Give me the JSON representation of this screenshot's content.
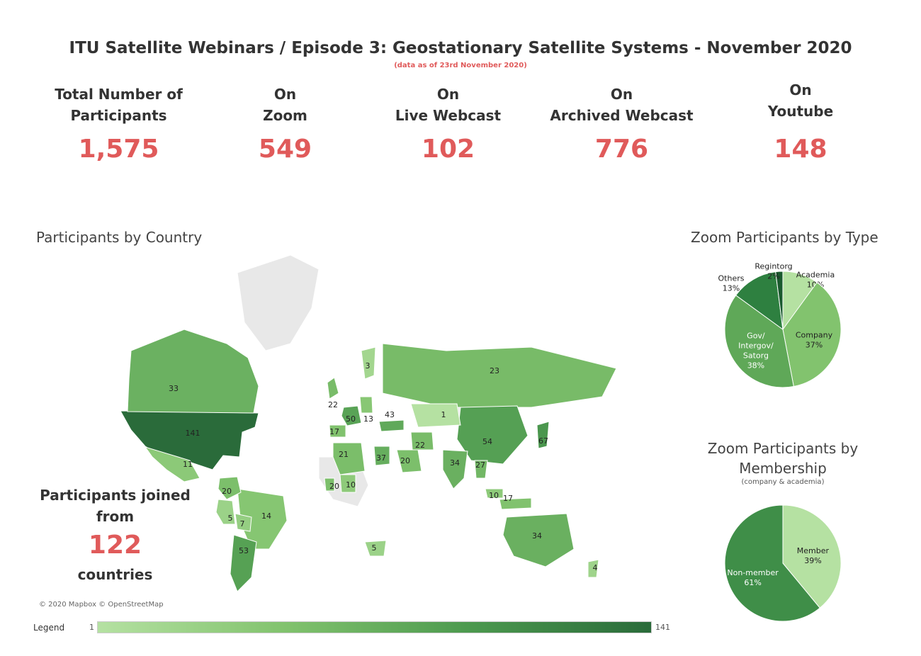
{
  "title": "ITU Satellite Webinars / Episode 3: Geostationary Satellite Systems - November 2020",
  "subtitle": "(data as of 23rd November 2020)",
  "kpis": [
    {
      "label": "Total Number of\nParticipants",
      "value": "1,575"
    },
    {
      "label": "On\nZoom",
      "value": "549"
    },
    {
      "label": "On\nLive Webcast",
      "value": "102"
    },
    {
      "label": "On\nArchived Webcast",
      "value": "776"
    },
    {
      "label": "On\nYoutube",
      "value": "148"
    }
  ],
  "map_title": "Participants by Country",
  "joined": {
    "line1": "Participants joined",
    "line2": "from",
    "value": "122",
    "line3": "countries"
  },
  "copyright": "© 2020 Mapbox © OpenStreetMap",
  "legend": {
    "label": "Legend",
    "min": "1",
    "max": "141"
  },
  "colors": {
    "accent": "#e05a5a",
    "green_light": "#b5e1a2",
    "green_mid": "#82c36e",
    "green_dark": "#4d9a4f",
    "green_darker": "#2a6b3a",
    "land_gray": "#e8e8e8"
  },
  "chart_data": [
    {
      "type": "map",
      "title": "Participants by Country",
      "values": [
        {
          "region": "United States",
          "value": 141
        },
        {
          "region": "Canada",
          "value": 33
        },
        {
          "region": "Mexico",
          "value": 11
        },
        {
          "region": "Brazil",
          "value": 14
        },
        {
          "region": "Argentina",
          "value": 53
        },
        {
          "region": "Russia",
          "value": 23
        },
        {
          "region": "China",
          "value": 54
        },
        {
          "region": "Japan",
          "value": 67
        },
        {
          "region": "India",
          "value": 34
        },
        {
          "region": "Australia",
          "value": 34
        },
        {
          "region": "Saudi Arabia",
          "value": 20
        },
        {
          "region": "Iran",
          "value": 22
        },
        {
          "region": "Turkey",
          "value": 43
        },
        {
          "region": "Egypt",
          "value": 37
        },
        {
          "region": "Algeria",
          "value": 21
        },
        {
          "region": "France",
          "value": 50
        },
        {
          "region": "Spain",
          "value": 17
        },
        {
          "region": "Germany",
          "value": 13
        },
        {
          "region": "Colombia",
          "value": 20
        },
        {
          "region": "Peru",
          "value": 5
        },
        {
          "region": "Bolivia",
          "value": 7
        },
        {
          "region": "Indonesia",
          "value": 17
        },
        {
          "region": "Malaysia",
          "value": 10
        },
        {
          "region": "Thailand",
          "value": 27
        },
        {
          "region": "Nigeria",
          "value": 10
        },
        {
          "region": "Ghana",
          "value": 20
        },
        {
          "region": "Kazakhstan",
          "value": 1
        },
        {
          "region": "South Africa",
          "value": 5
        },
        {
          "region": "New Zealand",
          "value": 4
        },
        {
          "region": "Sweden",
          "value": 3
        },
        {
          "region": "United Kingdom",
          "value": 22
        }
      ]
    },
    {
      "type": "pie",
      "title": "Zoom Participants by Type",
      "categories": [
        "Academia",
        "Company",
        "Gov/\nIntergov/\nSatorg",
        "Others",
        "Regintorg"
      ],
      "values": [
        10,
        37,
        38,
        13,
        2
      ],
      "unit": "%",
      "colors": [
        "#b5e1a2",
        "#82c36e",
        "#5fa858",
        "#2e8040",
        "#1a5a2e"
      ]
    },
    {
      "type": "pie",
      "title": "Zoom Participants by\nMembership",
      "note": "(company & academia)",
      "categories": [
        "Member",
        "Non-member"
      ],
      "values": [
        39,
        61
      ],
      "unit": "%",
      "colors": [
        "#b5e1a2",
        "#3f8e48"
      ]
    }
  ]
}
